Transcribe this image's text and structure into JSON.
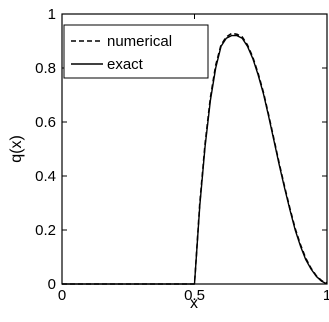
{
  "chart_data": {
    "type": "line",
    "title": "",
    "xlabel": "x",
    "ylabel": "q(x)",
    "xlim": [
      0,
      1
    ],
    "ylim": [
      0,
      1
    ],
    "grid": false,
    "legend_position": "top-left",
    "x_ticks": [
      0,
      0.5,
      1
    ],
    "x_tick_labels": [
      "0",
      "0.5",
      "1"
    ],
    "y_ticks": [
      0,
      0.2,
      0.4,
      0.6,
      0.8,
      1
    ],
    "y_tick_labels": [
      "0",
      "0.2",
      "0.4",
      "0.6",
      "0.8",
      "1"
    ],
    "series": [
      {
        "name": "numerical",
        "style": "dashed",
        "color": "#000000",
        "x": [
          0,
          0.5,
          0.52,
          0.54,
          0.56,
          0.58,
          0.6,
          0.62,
          0.64,
          0.66,
          0.68,
          0.7,
          0.72,
          0.74,
          0.76,
          0.78,
          0.8,
          0.82,
          0.84,
          0.86,
          0.88,
          0.9,
          0.92,
          0.94,
          0.96,
          0.98,
          1
        ],
        "y": [
          0,
          0,
          0.3,
          0.52,
          0.69,
          0.81,
          0.885,
          0.915,
          0.928,
          0.925,
          0.915,
          0.885,
          0.84,
          0.78,
          0.71,
          0.625,
          0.535,
          0.445,
          0.36,
          0.28,
          0.205,
          0.145,
          0.095,
          0.058,
          0.03,
          0.012,
          0.004
        ]
      },
      {
        "name": "exact",
        "style": "solid",
        "color": "#000000",
        "x": [
          0,
          0.5,
          0.52,
          0.54,
          0.56,
          0.58,
          0.6,
          0.62,
          0.64,
          0.66,
          0.68,
          0.7,
          0.72,
          0.74,
          0.76,
          0.78,
          0.8,
          0.82,
          0.84,
          0.86,
          0.88,
          0.9,
          0.92,
          0.94,
          0.96,
          0.98,
          1
        ],
        "y": [
          0,
          0,
          0.29,
          0.51,
          0.68,
          0.8,
          0.88,
          0.91,
          0.92,
          0.92,
          0.91,
          0.88,
          0.835,
          0.775,
          0.705,
          0.62,
          0.53,
          0.44,
          0.355,
          0.275,
          0.2,
          0.14,
          0.09,
          0.055,
          0.028,
          0.01,
          0
        ]
      }
    ]
  }
}
